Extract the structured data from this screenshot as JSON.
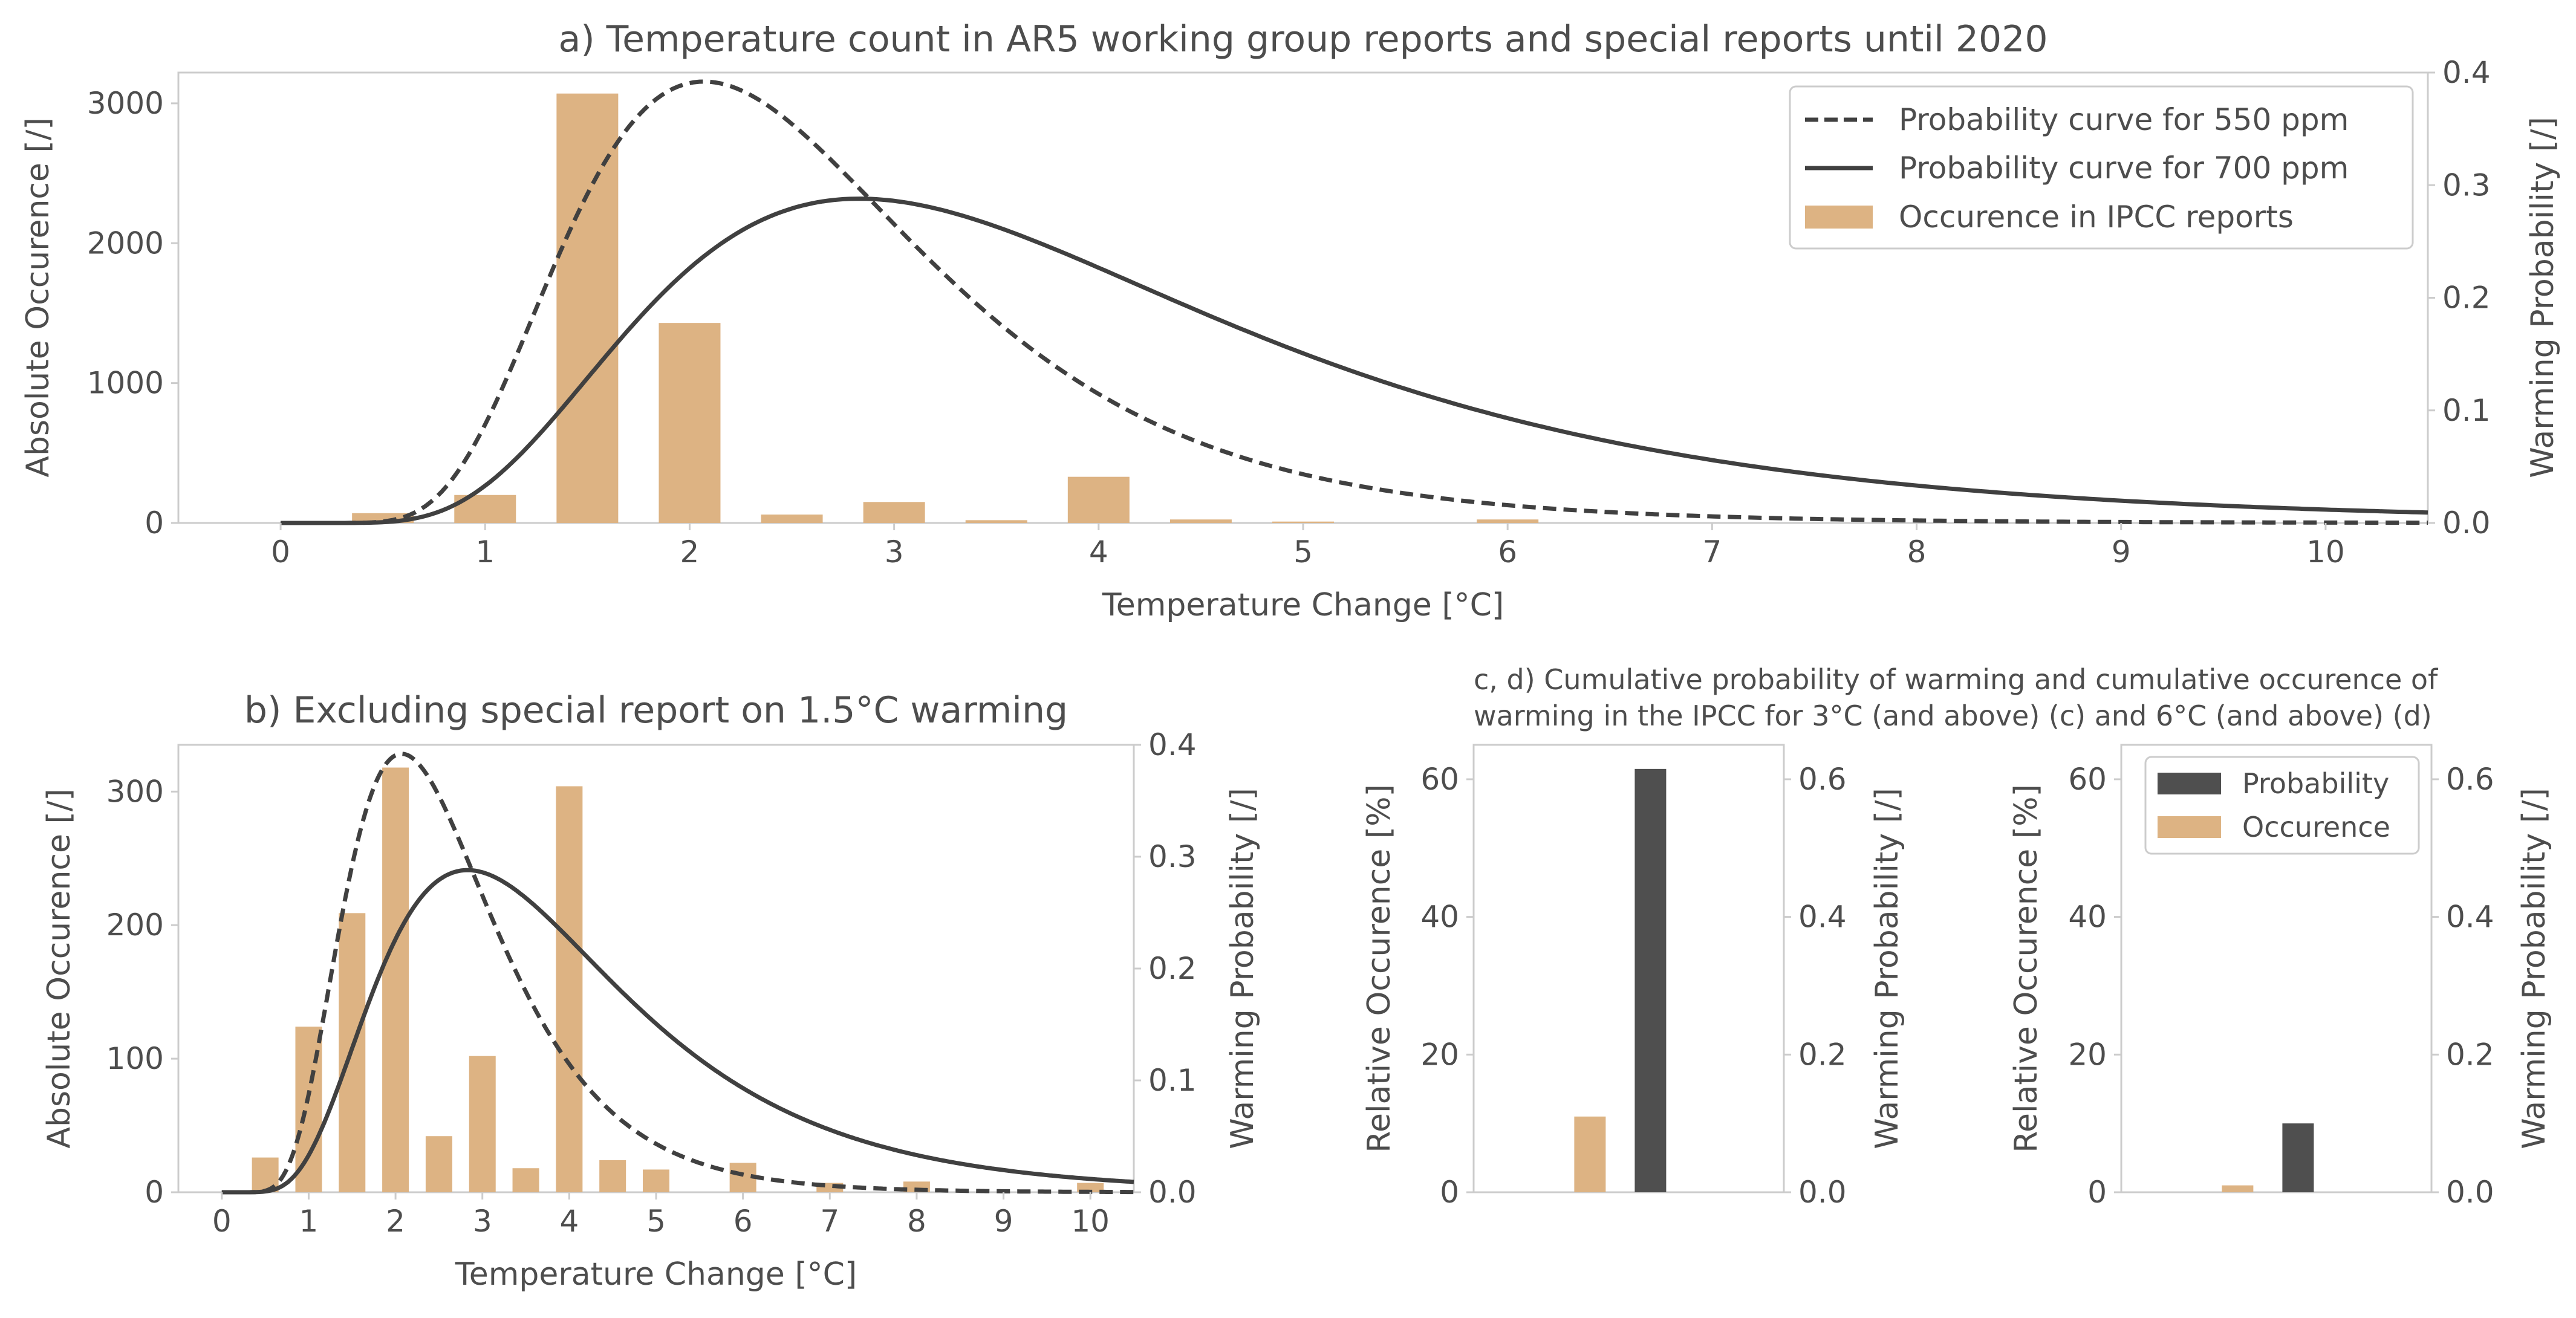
{
  "colors": {
    "bar": "#ddb383",
    "curve": "#404040",
    "probability_bar": "#4f4f4f",
    "spine": "#cccccc",
    "text": "#4d4d4d"
  },
  "chart_data": [
    {
      "id": "a",
      "type": "bar",
      "title": "a) Temperature count in AR5 working group reports and special reports until 2020",
      "xlabel": "Temperature Change [°C]",
      "ylabel": "Absolute Occurence [/]",
      "y2label": "Warming Probability [/]",
      "xlim": [
        -0.5,
        10.5
      ],
      "ylim": [
        0,
        3220
      ],
      "y2lim": [
        0,
        0.4
      ],
      "xticks": [
        "0",
        "1",
        "2",
        "3",
        "4",
        "5",
        "6",
        "7",
        "8",
        "9",
        "10"
      ],
      "yticks": [
        "0",
        "1000",
        "2000",
        "3000"
      ],
      "y2ticks": [
        "0.0",
        "0.1",
        "0.2",
        "0.3",
        "0.4"
      ],
      "legend_position": "top-right",
      "legend": {
        "curve_550": "Probability curve for 550 ppm",
        "curve_700": "Probability curve for 700 ppm",
        "bars": "Occurence in IPCC reports"
      },
      "bars": {
        "x": [
          0.5,
          1.0,
          1.5,
          2.0,
          2.5,
          3.0,
          3.5,
          4.0,
          4.5,
          5.0,
          6.0
        ],
        "values": [
          70,
          200,
          3070,
          1430,
          60,
          150,
          20,
          330,
          25,
          10,
          25
        ]
      },
      "series": [
        {
          "name": "Probability curve for 550 ppm",
          "style": "dashed",
          "mode": 2.07,
          "sigma": 0.42,
          "peak": 0.392
        },
        {
          "name": "Probability curve for 700 ppm",
          "style": "solid",
          "mode": 2.83,
          "sigma": 0.5,
          "peak": 0.288
        }
      ]
    },
    {
      "id": "b",
      "type": "bar",
      "title": "b) Excluding special report on 1.5°C warming",
      "xlabel": "Temperature Change [°C]",
      "ylabel": "Absolute Occurence [/]",
      "y2label": "Warming Probability [/]",
      "xlim": [
        -0.5,
        10.5
      ],
      "ylim": [
        0,
        335
      ],
      "y2lim": [
        0,
        0.4
      ],
      "xticks": [
        "0",
        "1",
        "2",
        "3",
        "4",
        "5",
        "6",
        "7",
        "8",
        "9",
        "10"
      ],
      "yticks": [
        "0",
        "100",
        "200",
        "300"
      ],
      "y2ticks": [
        "0.0",
        "0.1",
        "0.2",
        "0.3",
        "0.4"
      ],
      "bars": {
        "x": [
          0.5,
          1.0,
          1.5,
          2.0,
          2.5,
          3.0,
          3.5,
          4.0,
          4.5,
          5.0,
          6.0,
          7.0,
          8.0,
          10.0
        ],
        "values": [
          26,
          124,
          209,
          318,
          42,
          102,
          18,
          304,
          24,
          17,
          22,
          7,
          8,
          7
        ]
      },
      "series": [
        {
          "name": "Probability curve for 550 ppm",
          "style": "dashed",
          "mode": 2.07,
          "sigma": 0.42,
          "peak": 0.392
        },
        {
          "name": "Probability curve for 700 ppm",
          "style": "solid",
          "mode": 2.83,
          "sigma": 0.5,
          "peak": 0.288
        }
      ]
    },
    {
      "id": "c",
      "type": "bar",
      "title_line1": "c, d) Cumulative probability of warming and cumulative occurence of",
      "title_line2": "warming in the IPCC for 3°C (and above) (c) and 6°C (and above) (d)",
      "ylabel": "Relative Occurence [%]",
      "y2label": "Warming Probability [/]",
      "ylim": [
        0,
        65
      ],
      "y2lim": [
        0,
        0.65
      ],
      "yticks": [
        "0",
        "20",
        "40",
        "60"
      ],
      "y2ticks": [
        "0.0",
        "0.2",
        "0.4",
        "0.6"
      ],
      "occurence": 11,
      "probability": 0.615
    },
    {
      "id": "d",
      "type": "bar",
      "ylabel": "Relative Occurence [%]",
      "y2label": "Warming Probability [/]",
      "ylim": [
        0,
        65
      ],
      "y2lim": [
        0,
        0.65
      ],
      "yticks": [
        "0",
        "20",
        "40",
        "60"
      ],
      "y2ticks": [
        "0.0",
        "0.2",
        "0.4",
        "0.6"
      ],
      "occurence": 1,
      "probability": 0.1,
      "legend_position": "top-right",
      "legend": {
        "probability": "Probability",
        "occurence": "Occurence"
      }
    }
  ]
}
